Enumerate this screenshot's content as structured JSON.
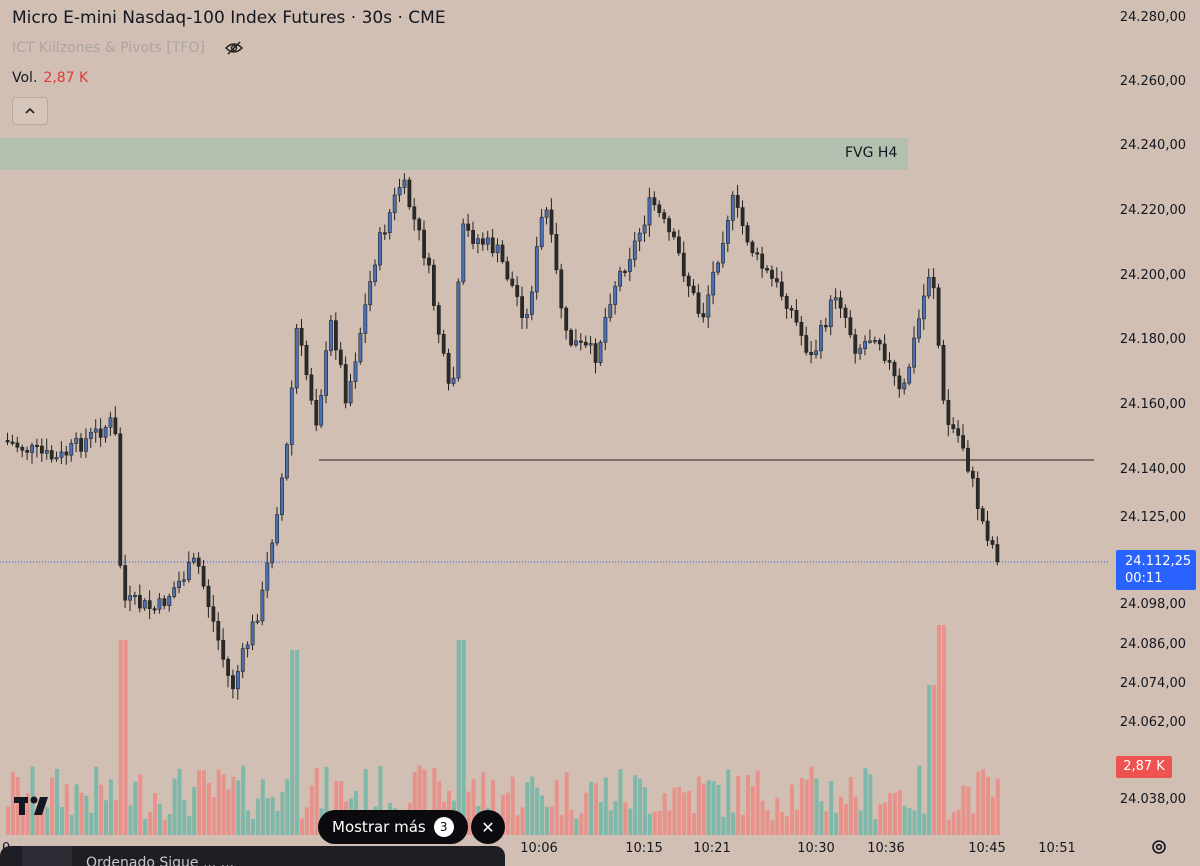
{
  "header": {
    "title": "Micro E-mini Nasdaq-100 Index Futures · 30s · CME",
    "indicator": "ICT Killzones & Pivots [TFO]",
    "volume_label": "Vol.",
    "volume_value": "2,87 K"
  },
  "zone": {
    "label": "FVG H4"
  },
  "price_axis": {
    "labels": [
      "24.280,00",
      "24.260,00",
      "24.240,00",
      "24.220,00",
      "24.200,00",
      "24.180,00",
      "24.160,00",
      "24.140,00",
      "24.125,00",
      "24.098,00",
      "24.086,00",
      "24.074,00",
      "24.062,00",
      "24.038,00"
    ]
  },
  "time_axis": {
    "labels": [
      "10:06",
      "10:15",
      "10:21",
      "10:30",
      "10:36",
      "10:45",
      "10:51"
    ],
    "left_edge_fragment": "0"
  },
  "current_price": {
    "value": "24.112,25",
    "countdown": "00:11"
  },
  "volume_badge": "2,87 K",
  "popup": {
    "more_label": "Mostrar más",
    "more_count": "3"
  },
  "bottom_bar": {
    "text": "Ordenado Sigue ... ..."
  },
  "colors": {
    "background": "#d0bfb2",
    "bull_candle": "#4a6fb5",
    "bear_candle": "#2a2a2a",
    "vol_up": "#7fb8aa",
    "vol_down": "#e8928c",
    "fvg_zone": "#aebfae",
    "accent": "#2962ff"
  }
}
